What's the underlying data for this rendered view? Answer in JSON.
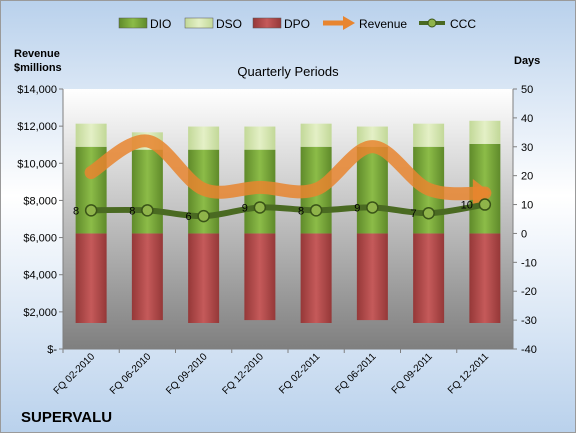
{
  "company": "SUPERVALU",
  "chart_data": {
    "type": "bar",
    "title": "Quarterly Periods",
    "ylabel_left": "Revenue $millions",
    "ylabel_right": "Days",
    "categories": [
      "FQ 02-2010",
      "FQ 06-2010",
      "FQ 09-2010",
      "FQ 12-2010",
      "FQ 02-2011",
      "FQ 06-2011",
      "FQ 09-2011",
      "FQ 12-2011"
    ],
    "left_axis": {
      "min": 0,
      "max": 14000,
      "ticks": [
        0,
        2000,
        4000,
        6000,
        8000,
        10000,
        12000,
        14000
      ],
      "tick_labels": [
        "$-",
        "$2,000",
        "$4,000",
        "$6,000",
        "$8,000",
        "$10,000",
        "$12,000",
        "$14,000"
      ]
    },
    "right_axis": {
      "min": -40,
      "max": 50,
      "ticks": [
        -40,
        -30,
        -20,
        -10,
        0,
        10,
        20,
        30,
        40,
        50
      ],
      "tick_labels": [
        "-40",
        "-30",
        "-20",
        "-10",
        "0",
        "10",
        "20",
        "30",
        "40",
        "50"
      ]
    },
    "grid": false,
    "legend_position": "top",
    "legend": [
      {
        "name": "DIO",
        "kind": "bar"
      },
      {
        "name": "DSO",
        "kind": "bar"
      },
      {
        "name": "DPO",
        "kind": "bar"
      },
      {
        "name": "Revenue",
        "kind": "arrow"
      },
      {
        "name": "CCC",
        "kind": "line-marker"
      }
    ],
    "series": [
      {
        "name": "DIO",
        "axis": "right",
        "color": "#7aa83c",
        "values": [
          30,
          29,
          29,
          29,
          30,
          30,
          30,
          31
        ]
      },
      {
        "name": "DSO",
        "axis": "right",
        "color": "#d2e6a6",
        "values": [
          8,
          6,
          8,
          8,
          8,
          7,
          8,
          8
        ]
      },
      {
        "name": "DPO",
        "axis": "right",
        "color": "#b84a4a",
        "values": [
          -31,
          -30,
          -31,
          -30,
          -31,
          -30,
          -31,
          -31
        ]
      },
      {
        "name": "Revenue",
        "axis": "left",
        "color": "#e8852f",
        "values": [
          9500,
          11200,
          8600,
          8700,
          8600,
          10900,
          8600,
          8400
        ]
      },
      {
        "name": "CCC",
        "axis": "right",
        "color": "#4a6a22",
        "values": [
          8,
          8,
          6,
          9,
          8,
          9,
          7,
          10
        ]
      }
    ],
    "ccc_labels": [
      "8",
      "8",
      "6",
      "9",
      "8",
      "9",
      "7",
      "10"
    ]
  }
}
